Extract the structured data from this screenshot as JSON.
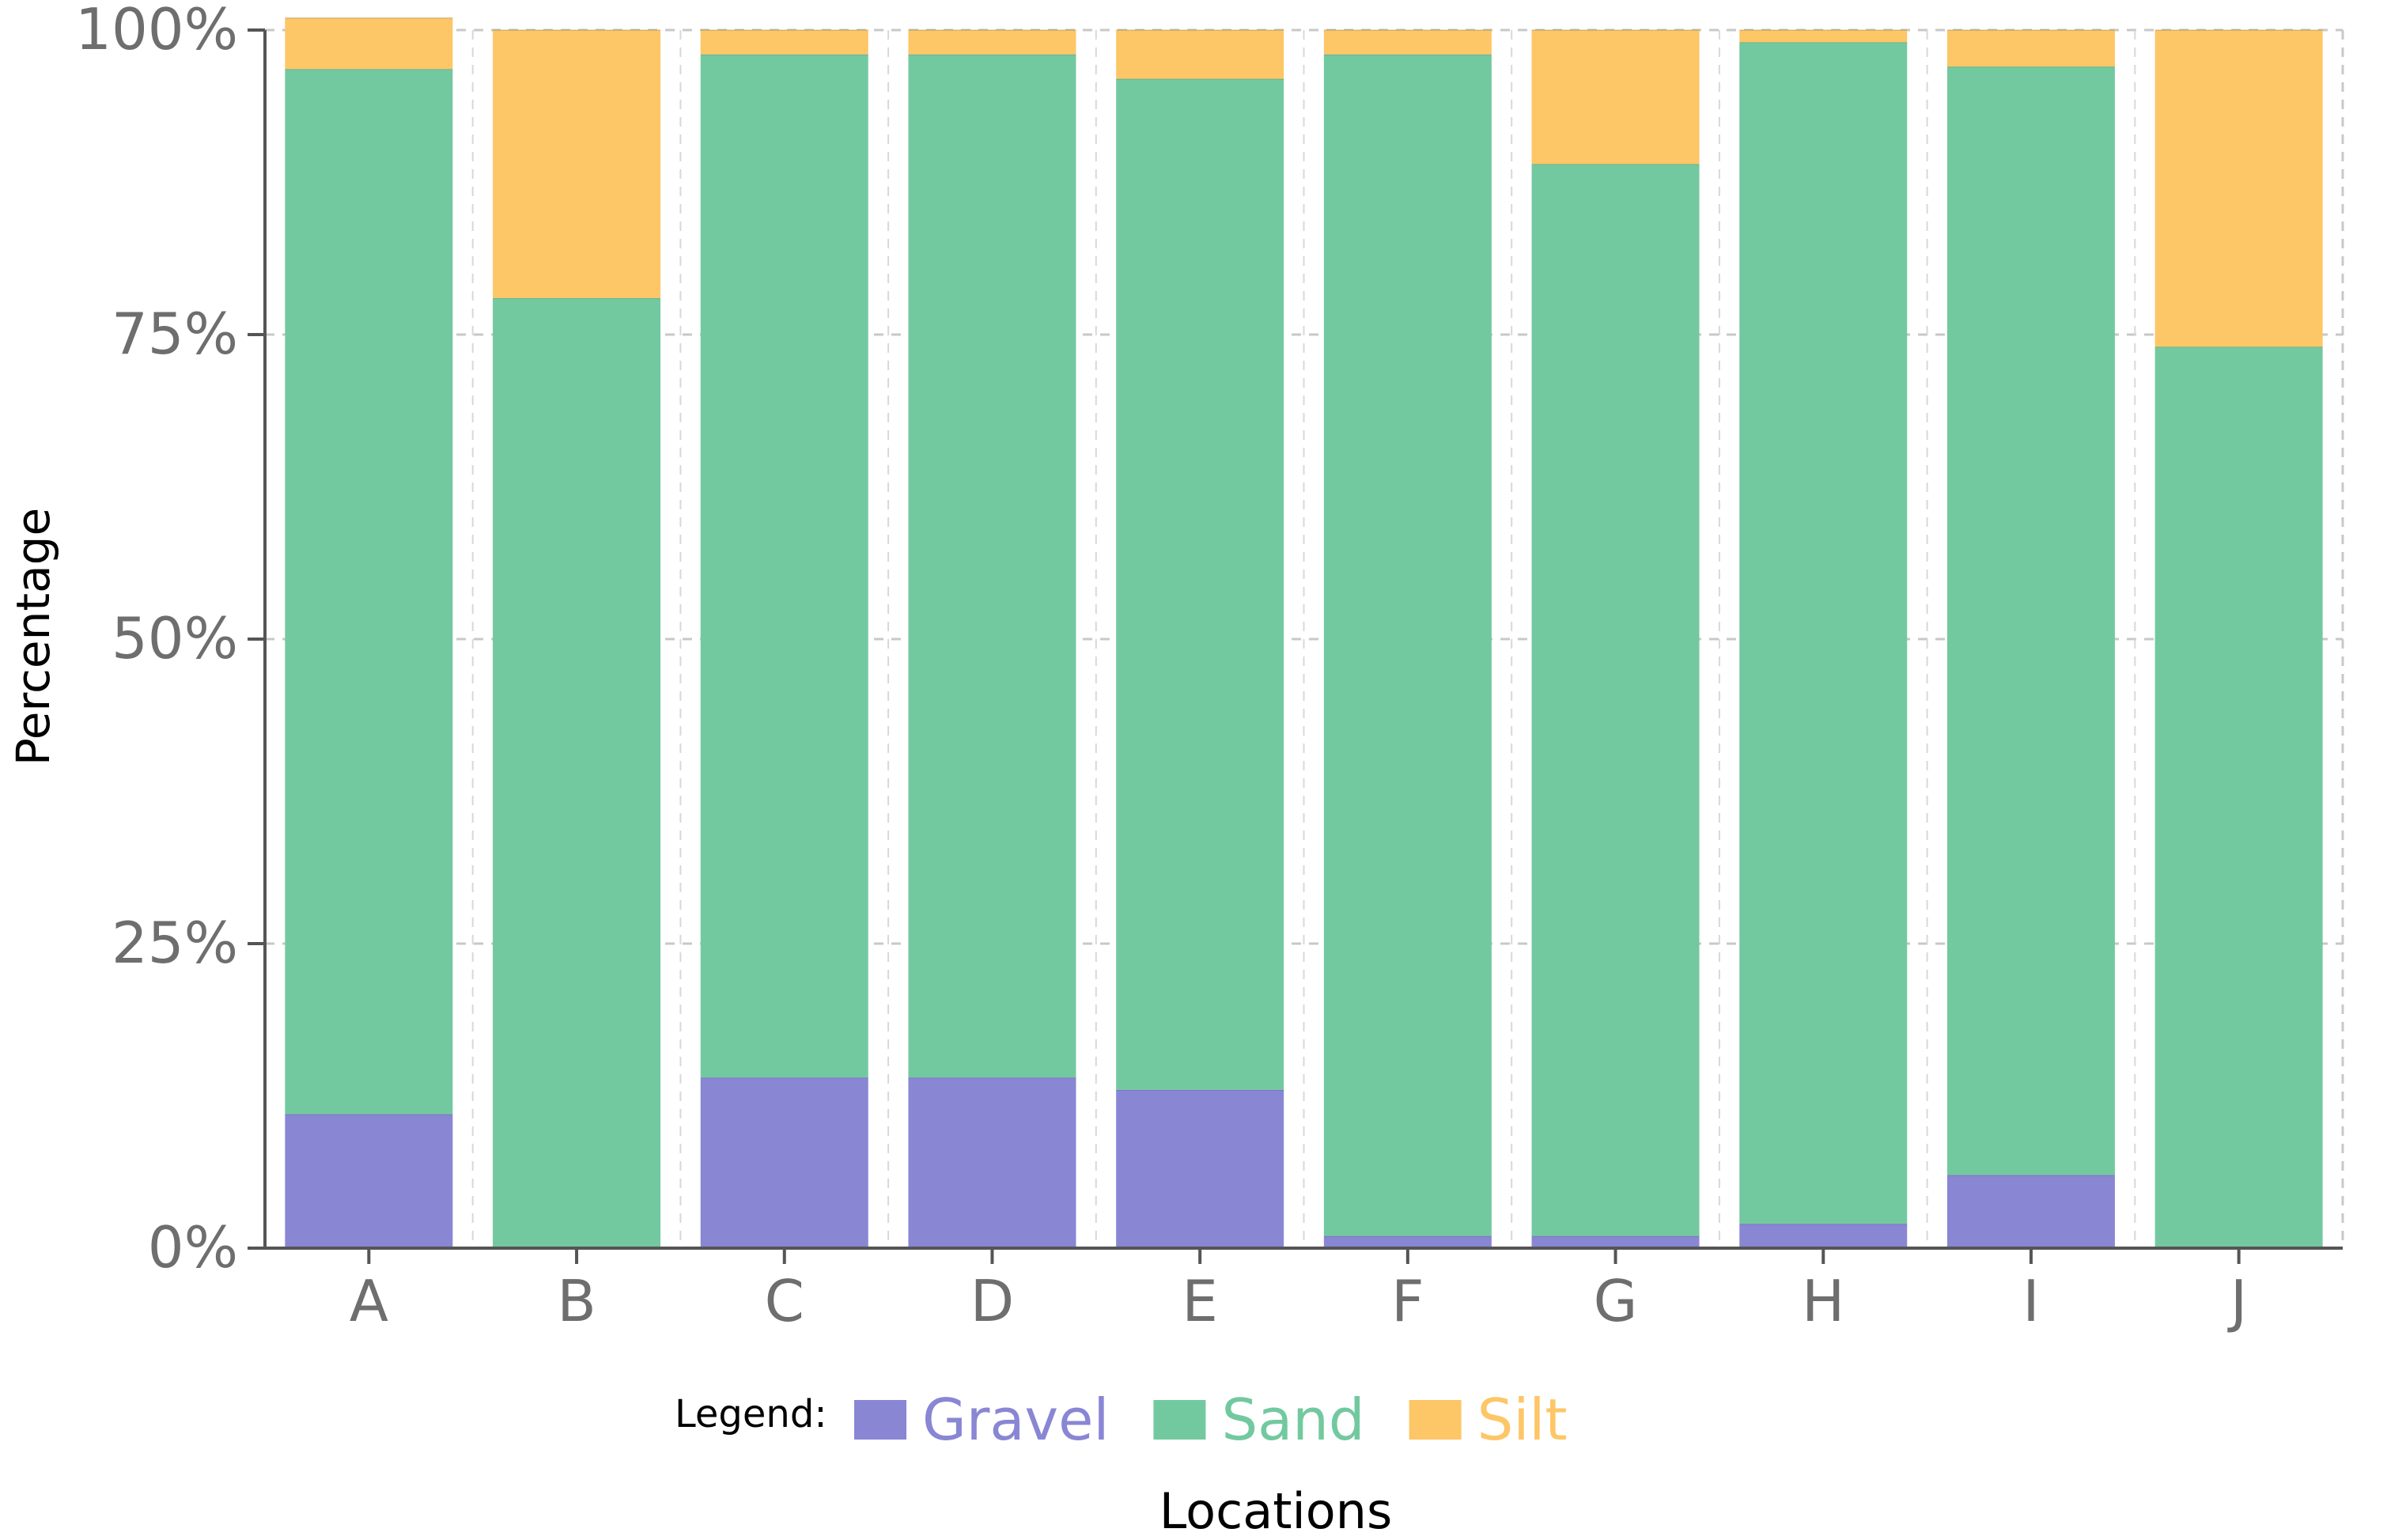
{
  "chart_data": {
    "type": "bar",
    "stacked": true,
    "categories": [
      "A",
      "B",
      "C",
      "D",
      "E",
      "F",
      "G",
      "H",
      "I",
      "J"
    ],
    "series": [
      {
        "name": "Gravel",
        "color": "#8986d4",
        "values": [
          11,
          0,
          14,
          14,
          13,
          1,
          1,
          2,
          6,
          0
        ]
      },
      {
        "name": "Sand",
        "color": "#73c99f",
        "values": [
          85.8,
          78,
          84,
          84,
          83,
          97,
          88,
          97,
          91,
          74
        ]
      },
      {
        "name": "Silt",
        "color": "#fdc666",
        "values": [
          4.2,
          22,
          2,
          2,
          4,
          2,
          11,
          1,
          3,
          26
        ]
      }
    ],
    "yticks": [
      "0%",
      "25%",
      "50%",
      "75%",
      "100%"
    ],
    "ytick_values": [
      0,
      25,
      50,
      75,
      100
    ],
    "ylim": [
      0,
      100
    ],
    "xlabel": "Locations",
    "ylabel": "Percentage",
    "legend_title": "Legend:",
    "legend_position": "bottom",
    "grid": true,
    "grid_style": "dashed"
  }
}
